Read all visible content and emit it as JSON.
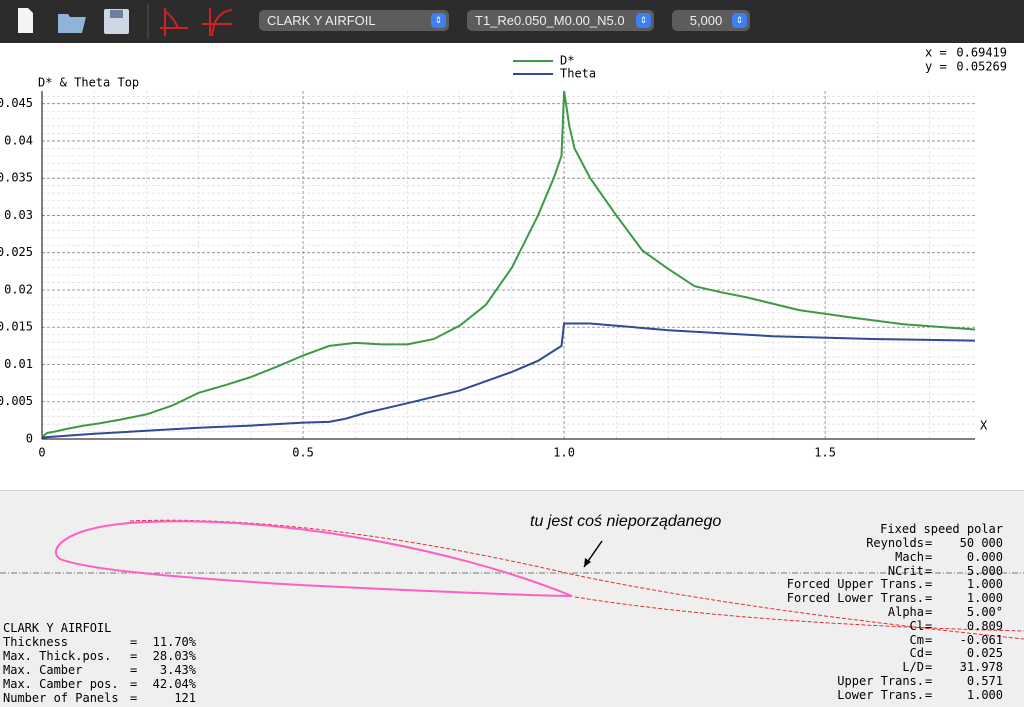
{
  "toolbar": {
    "airfoil": "CLARK Y AIRFOIL",
    "polar": "T1_Re0.050_M0.00_N5.0",
    "opp": "5,000"
  },
  "chart_data": {
    "type": "line",
    "title": "D* & Theta Top",
    "xlabel": "X",
    "xlim": [
      0,
      1.787
    ],
    "ylim": [
      0,
      0.0467
    ],
    "xticks": [
      0,
      0.5,
      {
        "value": 1,
        "label": "1.0"
      },
      1.5
    ],
    "yticks": [
      0,
      0.005,
      0.01,
      0.015,
      0.02,
      0.025,
      0.03,
      0.035,
      0.04,
      0.045
    ],
    "grid": true,
    "series": [
      {
        "name": "D*",
        "color": "#3c9a46",
        "x": [
          0,
          0.01,
          0.025,
          0.05,
          0.08,
          0.11,
          0.15,
          0.2,
          0.25,
          0.3,
          0.35,
          0.4,
          0.45,
          0.5,
          0.55,
          0.6,
          0.65,
          0.7,
          0.75,
          0.8,
          0.85,
          0.9,
          0.95,
          0.98,
          0.995,
          1.0,
          1.01,
          1.02,
          1.05,
          1.1,
          1.15,
          1.2,
          1.25,
          1.3,
          1.35,
          1.45,
          1.55,
          1.65,
          1.787
        ],
        "values": [
          0.0003,
          0.0008,
          0.001,
          0.0014,
          0.0018,
          0.0021,
          0.0026,
          0.0033,
          0.0045,
          0.0062,
          0.0072,
          0.0083,
          0.0097,
          0.0112,
          0.0125,
          0.0129,
          0.0127,
          0.0127,
          0.0134,
          0.0152,
          0.018,
          0.023,
          0.03,
          0.035,
          0.038,
          0.0467,
          0.042,
          0.039,
          0.035,
          0.03,
          0.0253,
          0.0228,
          0.0205,
          0.0197,
          0.019,
          0.0173,
          0.0163,
          0.0154,
          0.0147
        ]
      },
      {
        "name": "Theta",
        "color": "#2e4a9a",
        "x": [
          0,
          0.1,
          0.2,
          0.3,
          0.4,
          0.5,
          0.55,
          0.58,
          0.62,
          0.7,
          0.8,
          0.9,
          0.95,
          0.995,
          1.0,
          1.05,
          1.2,
          1.4,
          1.6,
          1.787
        ],
        "values": [
          0.0002,
          0.0007,
          0.0011,
          0.0015,
          0.0018,
          0.0022,
          0.0023,
          0.0027,
          0.0035,
          0.0048,
          0.0065,
          0.009,
          0.0105,
          0.0125,
          0.0155,
          0.0155,
          0.0146,
          0.0138,
          0.0134,
          0.0132
        ]
      }
    ]
  },
  "cursor": {
    "x_label": "x =",
    "x": "0.69419",
    "y_label": "y =",
    "y": "0.05269"
  },
  "annotation": "tu jest coś nieporządanego",
  "separator": "=",
  "airfoil_info": {
    "name": "CLARK Y AIRFOIL",
    "rows": [
      [
        "Thickness",
        "11.70%"
      ],
      [
        "Max. Thick.pos.",
        "28.03%"
      ],
      [
        "Max. Camber",
        "3.43%"
      ],
      [
        "Max. Camber pos.",
        "42.04%"
      ],
      [
        "Number of Panels",
        "121"
      ]
    ]
  },
  "polar_info": {
    "title": "Fixed speed polar",
    "rows": [
      [
        "Reynolds",
        "50 000"
      ],
      [
        "Mach",
        "0.000"
      ],
      [
        "NCrit",
        "5.000"
      ],
      [
        "Forced Upper Trans.",
        "1.000"
      ],
      [
        "Forced Lower Trans.",
        "1.000"
      ],
      [
        "Alpha",
        "5.00°"
      ],
      [
        "Cl",
        "0.809"
      ],
      [
        "Cm",
        "-0.061"
      ],
      [
        "Cd",
        "0.025"
      ],
      [
        "L/D",
        "31.978"
      ],
      [
        "Upper Trans.",
        "0.571"
      ],
      [
        "Lower Trans.",
        "1.000"
      ]
    ]
  }
}
